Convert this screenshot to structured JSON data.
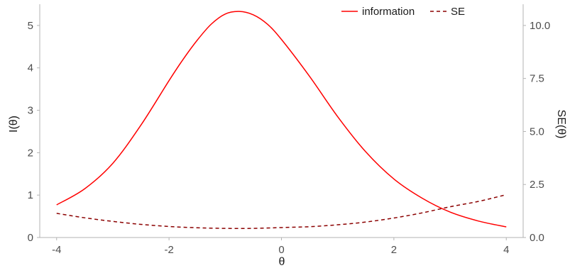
{
  "chart_data": {
    "type": "line",
    "xlabel": "θ",
    "ylabel_left": "I(θ)",
    "ylabel_right": "SE(θ)",
    "xlim": [
      -4.3,
      4.3
    ],
    "ylim_left": [
      0,
      5.5
    ],
    "ylim_right": [
      0,
      11
    ],
    "x_ticks": [
      -4,
      -2,
      0,
      2,
      4
    ],
    "y_ticks_left": [
      0,
      1,
      2,
      3,
      4,
      5
    ],
    "y_ticks_right": [
      "0.0",
      "2.5",
      "5.0",
      "7.5",
      "10.0"
    ],
    "legend_position": "top",
    "series": [
      {
        "name": "information",
        "axis": "left",
        "color": "#ff0000",
        "dash": "solid",
        "x": [
          -4,
          -3.5,
          -3,
          -2.5,
          -2,
          -1.75,
          -1.5,
          -1.25,
          -1,
          -0.75,
          -0.5,
          -0.25,
          0,
          0.5,
          1,
          1.5,
          2,
          2.5,
          3,
          3.5,
          4
        ],
        "y": [
          0.77,
          1.15,
          1.75,
          2.65,
          3.7,
          4.2,
          4.65,
          5.03,
          5.27,
          5.33,
          5.25,
          5.03,
          4.67,
          3.8,
          2.85,
          2.02,
          1.38,
          0.93,
          0.6,
          0.39,
          0.25
        ]
      },
      {
        "name": "SE",
        "axis": "right",
        "color": "#8b0000",
        "dash": "dashed",
        "x": [
          -4,
          -3.5,
          -3,
          -2.5,
          -2,
          -1.5,
          -1,
          -0.5,
          0,
          0.5,
          1,
          1.5,
          2,
          2.5,
          3,
          3.5,
          4
        ],
        "y": [
          1.14,
          0.93,
          0.76,
          0.62,
          0.52,
          0.46,
          0.43,
          0.43,
          0.47,
          0.51,
          0.6,
          0.73,
          0.92,
          1.16,
          1.45,
          1.7,
          2.02
        ]
      }
    ]
  }
}
